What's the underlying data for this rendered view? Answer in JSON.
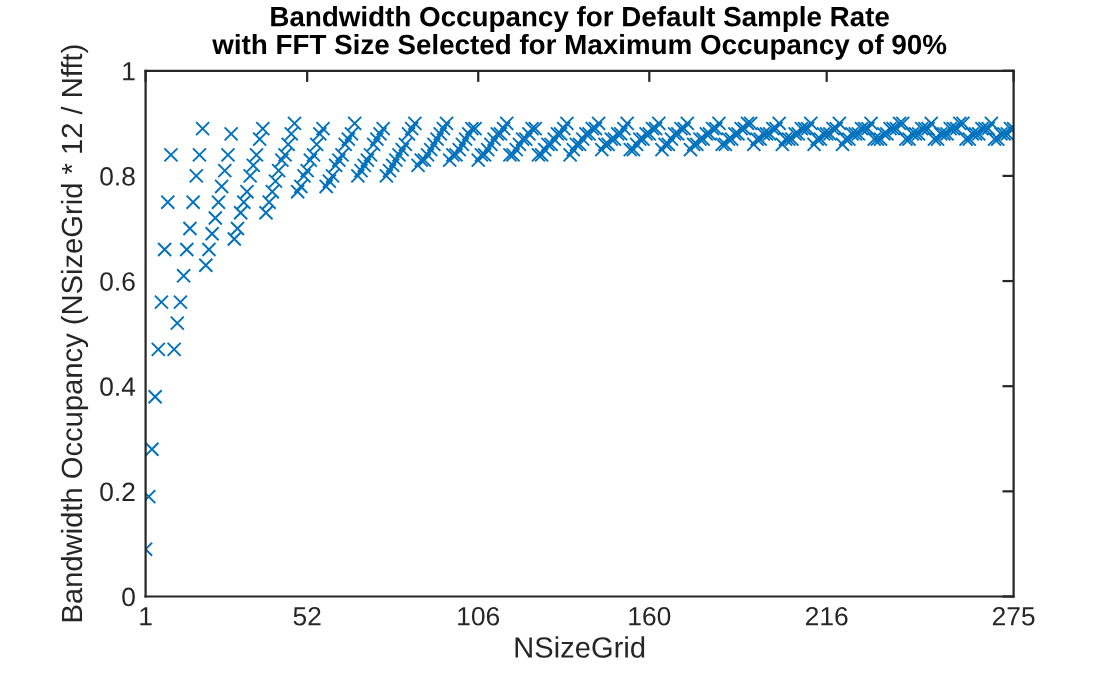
{
  "chart_data": {
    "type": "scatter",
    "title": "Bandwidth Occupancy for Default Sample Rate\nwith FFT Size Selected for Maximum Occupancy of 90%",
    "xlabel": "NSizeGrid",
    "ylabel": "Bandwidth Occupancy (NSizeGrid * 12 / Nfft)",
    "x": [
      1,
      2,
      3,
      4,
      5,
      6,
      7,
      8,
      9,
      10,
      11,
      12,
      13,
      14,
      15,
      16,
      17,
      18,
      19,
      20,
      21,
      22,
      23,
      24,
      25,
      26,
      27,
      28,
      29,
      30,
      31,
      32,
      33,
      34,
      35,
      36,
      37,
      38,
      39,
      40,
      41,
      42,
      43,
      44,
      45,
      46,
      47,
      48,
      49,
      50,
      51,
      52,
      53,
      54,
      55,
      56,
      57,
      58,
      59,
      60,
      61,
      62,
      63,
      64,
      65,
      66,
      67,
      68,
      69,
      70,
      71,
      72,
      73,
      74,
      75,
      76,
      77,
      78,
      79,
      80,
      81,
      82,
      83,
      84,
      85,
      86,
      87,
      88,
      89,
      90,
      91,
      92,
      93,
      94,
      95,
      96,
      97,
      98,
      99,
      100,
      101,
      102,
      103,
      104,
      105,
      106,
      107,
      108,
      109,
      110,
      111,
      112,
      113,
      114,
      115,
      116,
      117,
      118,
      119,
      120,
      121,
      122,
      123,
      124,
      125,
      126,
      127,
      128,
      129,
      130,
      131,
      132,
      133,
      134,
      135,
      136,
      137,
      138,
      139,
      140,
      141,
      142,
      143,
      144,
      145,
      146,
      147,
      148,
      149,
      150,
      151,
      152,
      153,
      154,
      155,
      156,
      157,
      158,
      159,
      160,
      161,
      162,
      163,
      164,
      165,
      166,
      167,
      168,
      169,
      170,
      171,
      172,
      173,
      174,
      175,
      176,
      177,
      178,
      179,
      180,
      181,
      182,
      183,
      184,
      185,
      186,
      187,
      188,
      189,
      190,
      191,
      192,
      193,
      194,
      195,
      196,
      197,
      198,
      199,
      200,
      201,
      202,
      203,
      204,
      205,
      206,
      207,
      208,
      209,
      210,
      211,
      212,
      213,
      214,
      215,
      216,
      217,
      218,
      219,
      220,
      221,
      222,
      223,
      224,
      225,
      226,
      227,
      228,
      229,
      230,
      231,
      232,
      233,
      234,
      235,
      236,
      237,
      238,
      239,
      240,
      241,
      242,
      243,
      244,
      245,
      246,
      247,
      248,
      249,
      250,
      251,
      252,
      253,
      254,
      255,
      256,
      257,
      258,
      259,
      260,
      261,
      262,
      263,
      264,
      265,
      266,
      267,
      268,
      269,
      270,
      271,
      272,
      273,
      274,
      275
    ],
    "series": [
      {
        "color": "#0072bd",
        "values": [
          0.09,
          0.19,
          0.28,
          0.38,
          0.47,
          0.56,
          0.66,
          0.75,
          0.84,
          0.47,
          0.52,
          0.56,
          0.61,
          0.66,
          0.7,
          0.75,
          0.8,
          0.84,
          0.89,
          0.63,
          0.66,
          0.69,
          0.72,
          0.75,
          0.78,
          0.81,
          0.84,
          0.88,
          0.68,
          0.7,
          0.73,
          0.75,
          0.77,
          0.8,
          0.82,
          0.84,
          0.87,
          0.89,
          0.73,
          0.75,
          0.77,
          0.79,
          0.81,
          0.83,
          0.84,
          0.86,
          0.88,
          0.9,
          0.77,
          0.78,
          0.8,
          0.81,
          0.83,
          0.84,
          0.86,
          0.88,
          0.89,
          0.78,
          0.79,
          0.8,
          0.82,
          0.83,
          0.84,
          0.86,
          0.87,
          0.88,
          0.9,
          0.8,
          0.81,
          0.82,
          0.83,
          0.84,
          0.86,
          0.87,
          0.88,
          0.89,
          0.8,
          0.81,
          0.82,
          0.83,
          0.84,
          0.85,
          0.86,
          0.88,
          0.89,
          0.9,
          0.82,
          0.83,
          0.83,
          0.84,
          0.85,
          0.86,
          0.87,
          0.88,
          0.89,
          0.9,
          0.83,
          0.84,
          0.84,
          0.85,
          0.86,
          0.87,
          0.88,
          0.89,
          0.89,
          0.83,
          0.84,
          0.84,
          0.85,
          0.86,
          0.87,
          0.88,
          0.88,
          0.89,
          0.9,
          0.84,
          0.84,
          0.85,
          0.86,
          0.87,
          0.87,
          0.88,
          0.89,
          0.89,
          0.84,
          0.84,
          0.85,
          0.86,
          0.86,
          0.87,
          0.88,
          0.88,
          0.89,
          0.9,
          0.84,
          0.85,
          0.86,
          0.86,
          0.87,
          0.88,
          0.88,
          0.89,
          0.89,
          0.9,
          0.85,
          0.86,
          0.86,
          0.87,
          0.87,
          0.88,
          0.88,
          0.89,
          0.9,
          0.85,
          0.85,
          0.86,
          0.87,
          0.87,
          0.88,
          0.88,
          0.89,
          0.89,
          0.9,
          0.85,
          0.86,
          0.86,
          0.87,
          0.88,
          0.88,
          0.89,
          0.89,
          0.9,
          0.85,
          0.86,
          0.86,
          0.87,
          0.87,
          0.88,
          0.88,
          0.89,
          0.89,
          0.9,
          0.86,
          0.86,
          0.87,
          0.87,
          0.88,
          0.88,
          0.89,
          0.89,
          0.9,
          0.9,
          0.86,
          0.87,
          0.87,
          0.88,
          0.88,
          0.88,
          0.89,
          0.89,
          0.9,
          0.86,
          0.87,
          0.87,
          0.87,
          0.88,
          0.88,
          0.89,
          0.89,
          0.89,
          0.9,
          0.86,
          0.87,
          0.87,
          0.88,
          0.88,
          0.88,
          0.89,
          0.89,
          0.9,
          0.86,
          0.87,
          0.87,
          0.88,
          0.88,
          0.88,
          0.89,
          0.89,
          0.89,
          0.9,
          0.87,
          0.87,
          0.87,
          0.88,
          0.88,
          0.89,
          0.89,
          0.89,
          0.9,
          0.9,
          0.87,
          0.87,
          0.88,
          0.88,
          0.88,
          0.89,
          0.89,
          0.89,
          0.9,
          0.87,
          0.87,
          0.88,
          0.88,
          0.88,
          0.89,
          0.89,
          0.89,
          0.9,
          0.9,
          0.87,
          0.87,
          0.88,
          0.88,
          0.88,
          0.89,
          0.89,
          0.89,
          0.9,
          0.87,
          0.87,
          0.88,
          0.88,
          0.88,
          0.89,
          0.89
        ]
      }
    ],
    "marker": "cross",
    "xlim": [
      1,
      275
    ],
    "ylim": [
      0,
      1
    ],
    "xticks": [
      1,
      52,
      106,
      160,
      216,
      275
    ],
    "yticks": [
      0,
      0.2,
      0.4,
      0.6,
      0.8,
      1
    ],
    "grid": false,
    "legend": false
  }
}
